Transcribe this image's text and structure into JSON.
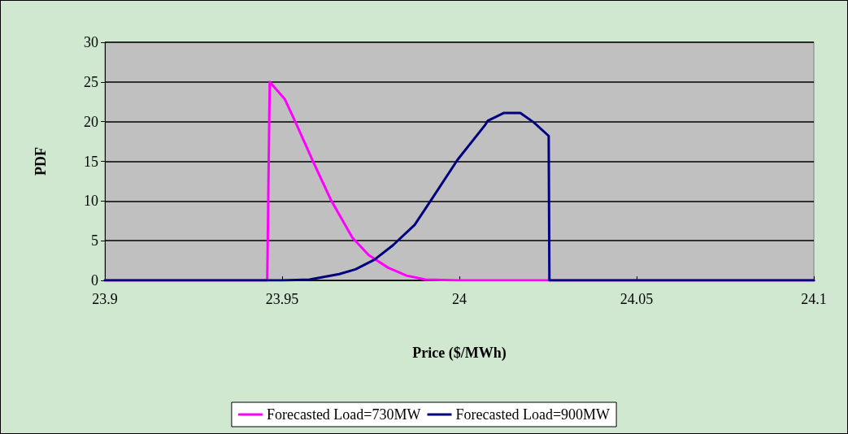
{
  "chart_data": {
    "type": "line",
    "xlabel": "Price ($/MWh)",
    "ylabel": "PDF",
    "xlim": [
      23.9,
      24.1
    ],
    "xticks": [
      23.9,
      23.95,
      24,
      24.05,
      24.1
    ],
    "ylim": [
      0,
      30
    ],
    "yticks": [
      0,
      5,
      10,
      15,
      20,
      25,
      30
    ],
    "grid": "y",
    "legend": "bottom",
    "marker": "none",
    "line_style": "solid",
    "series": [
      {
        "name": "Forecasted Load=730MW",
        "color": "#ff00ff",
        "x": [
          23.9,
          23.9458,
          23.9465,
          23.9508,
          23.9538,
          23.9588,
          23.9638,
          23.9698,
          23.9744,
          23.9799,
          23.9851,
          23.9904,
          24.0,
          24.1
        ],
        "values": [
          0,
          0,
          25,
          22.8,
          19.9,
          14.9,
          10.1,
          5.4,
          3.2,
          1.6,
          0.6,
          0.1,
          0,
          0
        ]
      },
      {
        "name": "Forecasted Load=900MW",
        "color": "#000080",
        "x": [
          23.9,
          23.95,
          23.9577,
          23.9661,
          23.9707,
          23.976,
          23.9812,
          23.9874,
          23.992,
          23.9995,
          24.0073,
          24.008,
          24.0126,
          24.0172,
          24.021,
          24.0252,
          24.0254,
          24.1
        ],
        "values": [
          0,
          0,
          0.1,
          0.8,
          1.4,
          2.6,
          4.4,
          7.0,
          10.1,
          15.2,
          19.6,
          20.1,
          21.1,
          21.1,
          19.9,
          18.2,
          0,
          0
        ]
      }
    ]
  }
}
